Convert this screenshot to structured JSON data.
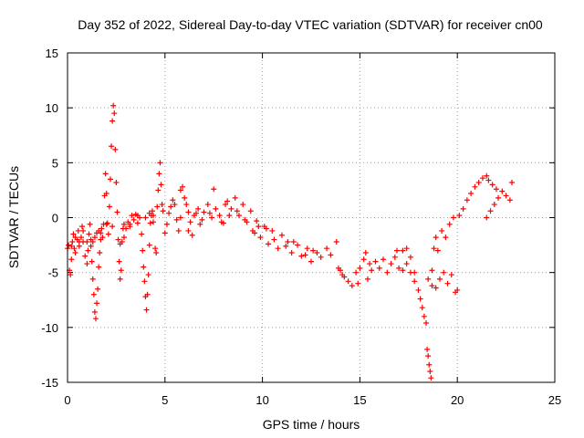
{
  "chart_data": {
    "type": "scatter",
    "title": "Day 352 of 2022, Sidereal Day-to-day VTEC variation (SDTVAR) for receiver cn00",
    "xlabel": "GPS time / hours",
    "ylabel": "SDTVAR / TECUs",
    "xlim": [
      0,
      25
    ],
    "ylim": [
      -15,
      15
    ],
    "xticks": [
      0,
      5,
      10,
      15,
      20,
      25
    ],
    "yticks": [
      -15,
      -10,
      -5,
      0,
      5,
      10,
      15
    ],
    "grid": true,
    "marker": "plus",
    "series": [
      {
        "name": "SDTVAR",
        "color": "#ff0000",
        "points": [
          [
            0.05,
            -2.5
          ],
          [
            0.1,
            -4.8
          ],
          [
            0.15,
            -5.2
          ],
          [
            0.2,
            -3.8
          ],
          [
            0.25,
            -2.2
          ],
          [
            0.3,
            -1.5
          ],
          [
            0.35,
            -2.8
          ],
          [
            0.4,
            -3.2
          ],
          [
            0.5,
            -2.0
          ],
          [
            0.55,
            -1.2
          ],
          [
            0.6,
            -2.6
          ],
          [
            0.7,
            -1.8
          ],
          [
            0.75,
            -0.8
          ],
          [
            0.8,
            -2.2
          ],
          [
            0.9,
            -3.5
          ],
          [
            1.0,
            -4.2
          ],
          [
            1.05,
            -3.0
          ],
          [
            1.1,
            -1.5
          ],
          [
            1.15,
            -0.6
          ],
          [
            1.2,
            -2.0
          ],
          [
            1.25,
            -4.0
          ],
          [
            1.3,
            -5.6
          ],
          [
            1.35,
            -7.0
          ],
          [
            1.4,
            -8.6
          ],
          [
            1.45,
            -9.2
          ],
          [
            1.5,
            -7.8
          ],
          [
            1.55,
            -6.5
          ],
          [
            1.6,
            -4.5
          ],
          [
            1.65,
            -3.2
          ],
          [
            1.7,
            -2.0
          ],
          [
            1.2,
            -2.6
          ],
          [
            1.3,
            -2.2
          ],
          [
            1.4,
            -1.8
          ],
          [
            1.5,
            -1.4
          ],
          [
            1.6,
            -1.2
          ],
          [
            1.75,
            -1.0
          ],
          [
            1.85,
            -0.6
          ],
          [
            1.9,
            2.0
          ],
          [
            1.95,
            4.0
          ],
          [
            2.0,
            2.2
          ],
          [
            2.05,
            -0.5
          ],
          [
            2.1,
            -1.5
          ],
          [
            2.15,
            1.0
          ],
          [
            2.2,
            3.5
          ],
          [
            2.25,
            6.5
          ],
          [
            2.3,
            8.8
          ],
          [
            2.35,
            10.2
          ],
          [
            2.4,
            9.5
          ],
          [
            2.45,
            6.2
          ],
          [
            2.5,
            3.2
          ],
          [
            2.55,
            0.5
          ],
          [
            2.6,
            -2.0
          ],
          [
            2.65,
            -4.0
          ],
          [
            2.7,
            -5.6
          ],
          [
            2.75,
            -4.8
          ],
          [
            2.8,
            -2.2
          ],
          [
            2.85,
            -1.0
          ],
          [
            2.9,
            -0.6
          ],
          [
            3.0,
            -1.0
          ],
          [
            3.1,
            -0.4
          ],
          [
            3.2,
            -0.8
          ],
          [
            3.3,
            0.2
          ],
          [
            3.4,
            -0.2
          ],
          [
            3.5,
            0.3
          ],
          [
            3.6,
            -0.5
          ],
          [
            3.7,
            0.0
          ],
          [
            3.8,
            -1.5
          ],
          [
            3.85,
            -3.0
          ],
          [
            3.9,
            -4.5
          ],
          [
            3.95,
            -5.8
          ],
          [
            4.0,
            -7.2
          ],
          [
            4.05,
            -8.4
          ],
          [
            4.1,
            -7.0
          ],
          [
            4.15,
            -5.2
          ],
          [
            4.2,
            -2.5
          ],
          [
            4.25,
            -0.5
          ],
          [
            4.3,
            0.2
          ],
          [
            4.35,
            0.6
          ],
          [
            4.4,
            -0.4
          ],
          [
            4.5,
            -2.8
          ],
          [
            4.55,
            -3.2
          ],
          [
            4.6,
            1.0
          ],
          [
            4.65,
            2.5
          ],
          [
            4.7,
            4.0
          ],
          [
            4.75,
            5.0
          ],
          [
            4.8,
            3.0
          ],
          [
            4.85,
            1.2
          ],
          [
            4.9,
            0.6
          ],
          [
            5.0,
            -1.4
          ],
          [
            5.1,
            -0.6
          ],
          [
            5.2,
            0.4
          ],
          [
            5.3,
            1.0
          ],
          [
            5.4,
            1.6
          ],
          [
            5.5,
            1.2
          ],
          [
            5.6,
            -0.2
          ],
          [
            5.7,
            -1.2
          ],
          [
            5.8,
            2.5
          ],
          [
            5.9,
            2.8
          ],
          [
            6.0,
            1.8
          ],
          [
            6.1,
            1.2
          ],
          [
            6.2,
            0.5
          ],
          [
            6.3,
            -0.4
          ],
          [
            6.4,
            -1.6
          ],
          [
            6.5,
            0.2
          ],
          [
            6.7,
            0.8
          ],
          [
            6.9,
            -0.2
          ],
          [
            7.0,
            0.5
          ],
          [
            7.2,
            1.2
          ],
          [
            7.4,
            0.0
          ],
          [
            7.5,
            2.6
          ],
          [
            7.6,
            0.8
          ],
          [
            7.8,
            0.2
          ],
          [
            8.0,
            -0.5
          ],
          [
            8.2,
            1.5
          ],
          [
            8.4,
            0.8
          ],
          [
            8.6,
            1.8
          ],
          [
            8.8,
            0.2
          ],
          [
            9.0,
            1.2
          ],
          [
            9.2,
            -0.4
          ],
          [
            9.4,
            0.6
          ],
          [
            9.5,
            -1.2
          ],
          [
            9.7,
            -0.3
          ],
          [
            9.9,
            -1.8
          ],
          [
            10.1,
            -0.8
          ],
          [
            10.3,
            -2.4
          ],
          [
            10.5,
            -1.2
          ],
          [
            10.8,
            -2.8
          ],
          [
            11.0,
            -1.6
          ],
          [
            11.3,
            -2.2
          ],
          [
            11.5,
            -3.2
          ],
          [
            11.8,
            -2.5
          ],
          [
            12.0,
            -3.5
          ],
          [
            12.3,
            -2.8
          ],
          [
            12.5,
            -4.0
          ],
          [
            12.8,
            -3.2
          ],
          [
            13.0,
            -3.6
          ],
          [
            13.3,
            -2.8
          ],
          [
            13.5,
            -3.4
          ],
          [
            13.8,
            -2.2
          ],
          [
            14.0,
            -4.8
          ],
          [
            14.2,
            -5.4
          ],
          [
            14.4,
            -5.8
          ],
          [
            14.6,
            -6.2
          ],
          [
            14.8,
            -5.0
          ],
          [
            15.0,
            -4.6
          ],
          [
            15.2,
            -3.8
          ],
          [
            15.4,
            -5.6
          ],
          [
            15.6,
            -4.8
          ],
          [
            15.8,
            -4.0
          ],
          [
            16.0,
            -4.6
          ],
          [
            16.2,
            -3.8
          ],
          [
            16.4,
            -5.0
          ],
          [
            16.6,
            -4.2
          ],
          [
            16.8,
            -3.6
          ],
          [
            17.0,
            -4.6
          ],
          [
            17.2,
            -3.0
          ],
          [
            17.4,
            -2.8
          ],
          [
            17.6,
            -3.6
          ],
          [
            17.8,
            -5.0
          ],
          [
            18.0,
            -6.6
          ],
          [
            18.1,
            -7.4
          ],
          [
            18.2,
            -8.2
          ],
          [
            18.3,
            -9.0
          ],
          [
            18.4,
            -9.6
          ],
          [
            18.45,
            -12.0
          ],
          [
            18.5,
            -12.6
          ],
          [
            18.55,
            -13.4
          ],
          [
            18.6,
            -14.0
          ],
          [
            18.65,
            -14.6
          ],
          [
            18.7,
            -4.8
          ],
          [
            18.8,
            -2.8
          ],
          [
            18.9,
            -1.8
          ],
          [
            19.0,
            -3.0
          ],
          [
            19.2,
            -1.2
          ],
          [
            19.4,
            -1.8
          ],
          [
            19.6,
            -0.6
          ],
          [
            19.8,
            0.0
          ],
          [
            19.9,
            -6.8
          ],
          [
            20.0,
            -6.6
          ],
          [
            20.1,
            0.2
          ],
          [
            20.3,
            0.8
          ],
          [
            20.5,
            1.6
          ],
          [
            20.7,
            2.2
          ],
          [
            20.9,
            2.8
          ],
          [
            21.1,
            3.2
          ],
          [
            21.3,
            3.6
          ],
          [
            21.5,
            3.8
          ],
          [
            21.6,
            3.4
          ],
          [
            21.8,
            3.0
          ],
          [
            22.0,
            2.6
          ],
          [
            21.5,
            0.0
          ],
          [
            21.7,
            0.6
          ],
          [
            21.9,
            1.2
          ],
          [
            22.1,
            1.8
          ],
          [
            22.3,
            2.4
          ],
          [
            22.5,
            2.0
          ],
          [
            22.7,
            1.6
          ],
          [
            22.8,
            3.2
          ],
          [
            18.9,
            -6.4
          ],
          [
            19.1,
            -5.6
          ],
          [
            19.3,
            -5.0
          ],
          [
            19.5,
            -6.0
          ],
          [
            19.7,
            -5.2
          ],
          [
            18.5,
            -5.6
          ],
          [
            18.7,
            -6.2
          ],
          [
            17.6,
            -5.0
          ],
          [
            17.8,
            -5.8
          ],
          [
            17.4,
            -4.2
          ],
          [
            17.2,
            -4.8
          ],
          [
            16.9,
            -3.0
          ],
          [
            15.3,
            -3.2
          ],
          [
            15.5,
            -4.2
          ],
          [
            14.9,
            -6.0
          ],
          [
            14.1,
            -5.2
          ],
          [
            13.9,
            -4.6
          ],
          [
            12.6,
            -3.0
          ],
          [
            12.2,
            -3.4
          ],
          [
            11.6,
            -2.2
          ],
          [
            11.2,
            -2.6
          ],
          [
            10.6,
            -2.0
          ],
          [
            10.2,
            -1.0
          ],
          [
            9.8,
            -0.8
          ],
          [
            9.6,
            -1.4
          ],
          [
            9.1,
            -0.2
          ],
          [
            8.7,
            0.6
          ],
          [
            8.3,
            0.2
          ],
          [
            8.1,
            1.2
          ],
          [
            7.9,
            -0.4
          ],
          [
            7.3,
            0.4
          ],
          [
            6.8,
            -0.6
          ],
          [
            6.6,
            0.4
          ],
          [
            6.2,
            -1.2
          ],
          [
            5.8,
            0.0
          ],
          [
            4.4,
            0.2
          ],
          [
            4.2,
            0.4
          ],
          [
            4.0,
            0.0
          ],
          [
            3.6,
            0.2
          ],
          [
            3.2,
            -0.6
          ],
          [
            2.9,
            -1.8
          ],
          [
            2.7,
            -2.4
          ],
          [
            2.3,
            -0.8
          ],
          [
            2.0,
            -0.6
          ],
          [
            1.7,
            -1.4
          ],
          [
            0.8,
            -1.2
          ],
          [
            0.6,
            -2.2
          ],
          [
            0.4,
            -1.8
          ],
          [
            0.2,
            -2.6
          ],
          [
            0.0,
            -2.8
          ],
          [
            1.0,
            -2.2
          ],
          [
            1.8,
            -1.8
          ]
        ]
      }
    ]
  }
}
